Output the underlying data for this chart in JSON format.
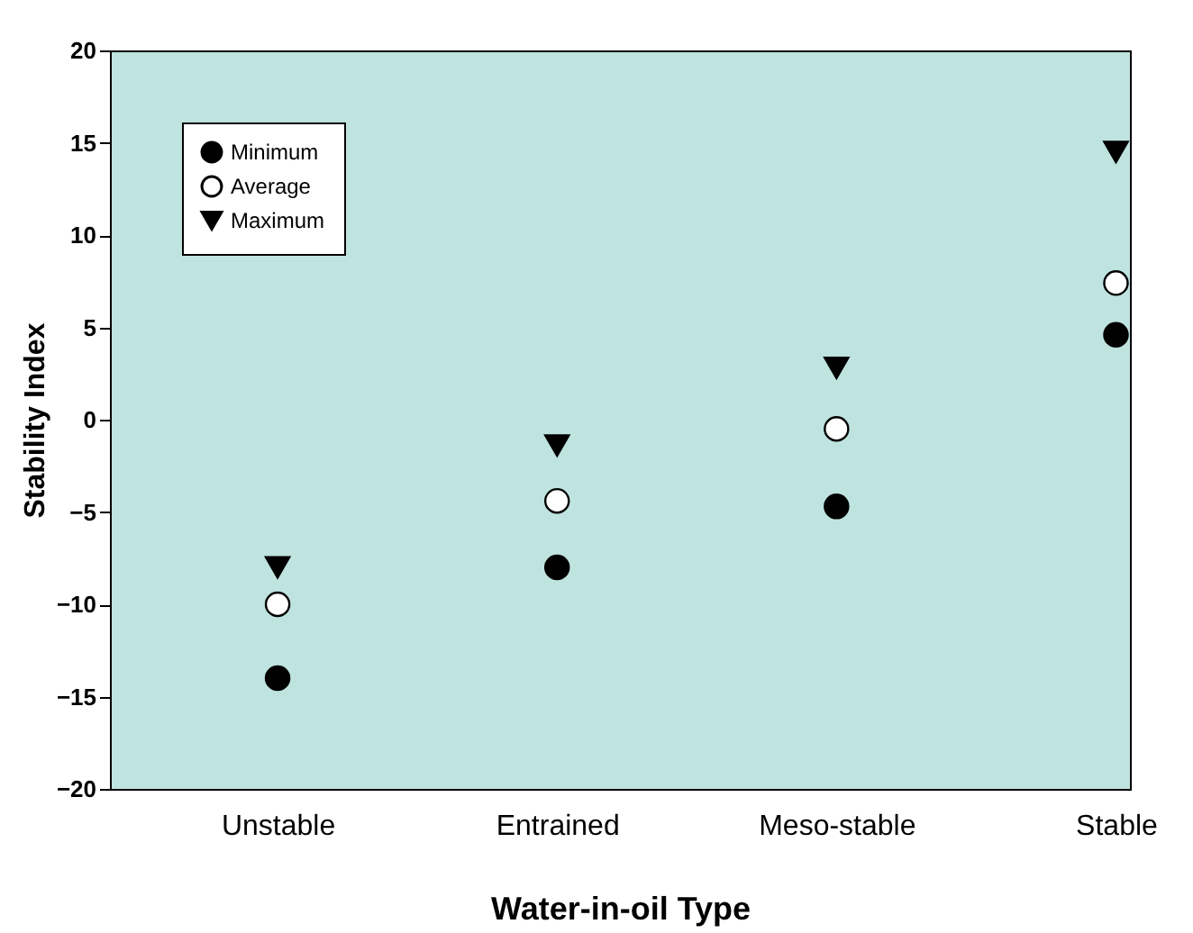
{
  "chart_data": {
    "type": "scatter",
    "xlabel": "Water-in-oil Type",
    "ylabel": "Stability  Index",
    "categories": [
      "Unstable",
      "Entrained",
      "Meso-stable",
      "Stable"
    ],
    "series": [
      {
        "name": "Minimum",
        "color": "#000000",
        "marker": "circle",
        "values": [
          -14,
          -8,
          -4.7,
          4.6
        ]
      },
      {
        "name": "Average",
        "color": "#ffffff",
        "marker": "circle",
        "values": [
          -10,
          -4.4,
          -0.5,
          7.4
        ]
      },
      {
        "name": "Maximum",
        "color": "#000000",
        "marker": "triangle",
        "values": [
          -8,
          -1.4,
          2.8,
          14.5
        ]
      }
    ],
    "ylim": [
      -20,
      20
    ],
    "yticks": [
      -20,
      -15,
      -10,
      -5,
      0,
      5,
      10,
      15,
      20
    ],
    "grid": false,
    "legend": "top left"
  }
}
